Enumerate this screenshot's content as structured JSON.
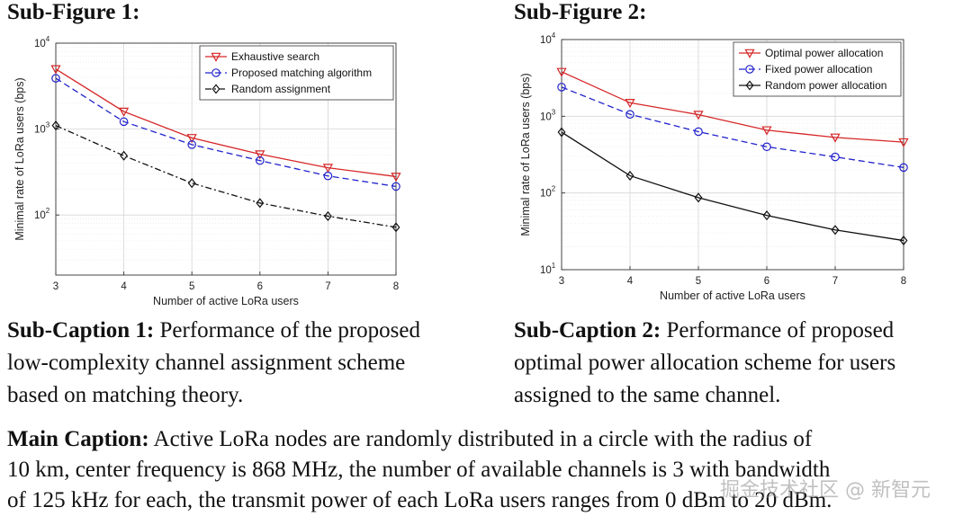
{
  "subfig1_title": "Sub-Figure 1:",
  "subfig2_title": "Sub-Figure 2:",
  "sub_caption_1": {
    "label": "Sub-Caption 1:",
    "lines": [
      " Performance of the proposed",
      "low-complexity channel assignment scheme",
      "based on matching theory."
    ]
  },
  "sub_caption_2": {
    "label": "Sub-Caption 2:",
    "lines": [
      " Performance of proposed",
      "optimal power allocation scheme for users",
      "assigned to the same channel."
    ]
  },
  "main_caption": {
    "label": "Main Caption:",
    "lines": [
      " Active LoRa nodes are randomly distributed in a circle with the radius of",
      "10 km, center frequency is 868 MHz, the number of available channels is 3 with bandwidth",
      "of 125 kHz for each, the transmit power of each LoRa users ranges from 0 dBm to 20 dBm."
    ]
  },
  "watermark": "掘金技术社区 @ 新智元",
  "chart_data": [
    {
      "type": "line",
      "yscale": "log",
      "xlabel": "Number of active LoRa users",
      "ylabel": "Minimal rate of LoRa users (bps)",
      "x": [
        3,
        4,
        5,
        6,
        7,
        8
      ],
      "xlim": [
        3,
        8
      ],
      "ylim": [
        20,
        10000
      ],
      "ytick_powers": [
        2,
        3,
        4
      ],
      "grid": true,
      "legend_position": "top-right",
      "series": [
        {
          "name": "Exhaustive search",
          "values": [
            5000,
            1600,
            790,
            510,
            355,
            280
          ],
          "color": "#d62728",
          "marker": "triangle-down",
          "dash": "solid"
        },
        {
          "name": "Proposed matching algorithm",
          "values": [
            3900,
            1220,
            660,
            430,
            285,
            215
          ],
          "color": "#2222cc",
          "marker": "circle",
          "dash": "dashed"
        },
        {
          "name": "Random assignment",
          "values": [
            1100,
            490,
            235,
            138,
            97,
            72
          ],
          "color": "#111111",
          "marker": "diamond",
          "dash": "dashdot"
        }
      ]
    },
    {
      "type": "line",
      "yscale": "log",
      "xlabel": "Number of active LoRa users",
      "ylabel": "Minimal rate of LoRa users (bps)",
      "x": [
        3,
        4,
        5,
        6,
        7,
        8
      ],
      "xlim": [
        3,
        8
      ],
      "ylim": [
        10,
        10000
      ],
      "ytick_powers": [
        1,
        2,
        3,
        4
      ],
      "grid": true,
      "legend_position": "top-right",
      "series": [
        {
          "name": "Optimal power allocation",
          "values": [
            3800,
            1500,
            1050,
            660,
            530,
            460
          ],
          "color": "#d62728",
          "marker": "triangle-down",
          "dash": "solid"
        },
        {
          "name": "Fixed power allocation",
          "values": [
            2400,
            1060,
            630,
            400,
            295,
            215
          ],
          "color": "#2222cc",
          "marker": "circle",
          "dash": "dashed"
        },
        {
          "name": "Random power allocation",
          "values": [
            620,
            168,
            87,
            51,
            33,
            24
          ],
          "color": "#111111",
          "marker": "diamond",
          "dash": "solid"
        }
      ]
    }
  ]
}
